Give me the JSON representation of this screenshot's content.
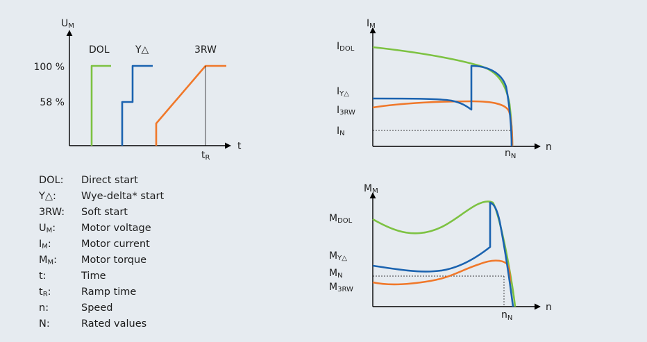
{
  "voltage_chart": {
    "y_axis_label": "U",
    "y_axis_sub": "M",
    "x_axis_label": "t",
    "tick_100": "100 %",
    "tick_58": "58 %",
    "ramp_tick": "t",
    "ramp_tick_sub": "R",
    "method_labels": {
      "dol": "DOL",
      "wye_delta": "Y△",
      "soft": "3RW"
    }
  },
  "current_chart": {
    "y_axis_label": "I",
    "y_axis_sub": "M",
    "x_axis_label": "n",
    "rated_speed": "n",
    "rated_speed_sub": "N",
    "labels": {
      "dol": {
        "main": "I",
        "sub": "DOL"
      },
      "wye_delta": {
        "main": "I",
        "sub": "Y△"
      },
      "soft": {
        "main": "I",
        "sub": "3RW"
      },
      "rated": {
        "main": "I",
        "sub": "N"
      }
    }
  },
  "torque_chart": {
    "y_axis_label": "M",
    "y_axis_sub": "M",
    "x_axis_label": "n",
    "rated_speed": "n",
    "rated_speed_sub": "N",
    "labels": {
      "dol": {
        "main": "M",
        "sub": "DOL"
      },
      "wye_delta": {
        "main": "M",
        "sub": "Y△"
      },
      "rated": {
        "main": "M",
        "sub": "N"
      },
      "soft": {
        "main": "M",
        "sub": "3RW"
      }
    }
  },
  "legend": [
    {
      "key": "DOL:",
      "desc": "Direct start"
    },
    {
      "key": "Y△:",
      "desc": "Wye-delta* start"
    },
    {
      "key": "3RW:",
      "desc": "Soft start"
    },
    {
      "key": "U",
      "key_sub": "M",
      "key_tail": ":",
      "desc": "Motor voltage"
    },
    {
      "key": "I",
      "key_sub": "M",
      "key_tail": ":",
      "desc": "Motor current"
    },
    {
      "key": "M",
      "key_sub": "M",
      "key_tail": ":",
      "desc": "Motor torque"
    },
    {
      "key": "t:",
      "desc": "Time"
    },
    {
      "key": "t",
      "key_sub": "R",
      "key_tail": ":",
      "desc": "Ramp time"
    },
    {
      "key": "n:",
      "desc": "Speed"
    },
    {
      "key": "N:",
      "desc": "Rated values"
    }
  ],
  "colors": {
    "dol": "#7dc242",
    "wye_delta": "#1b63b0",
    "soft": "#f0782a",
    "background": "#e6ebf0"
  }
}
